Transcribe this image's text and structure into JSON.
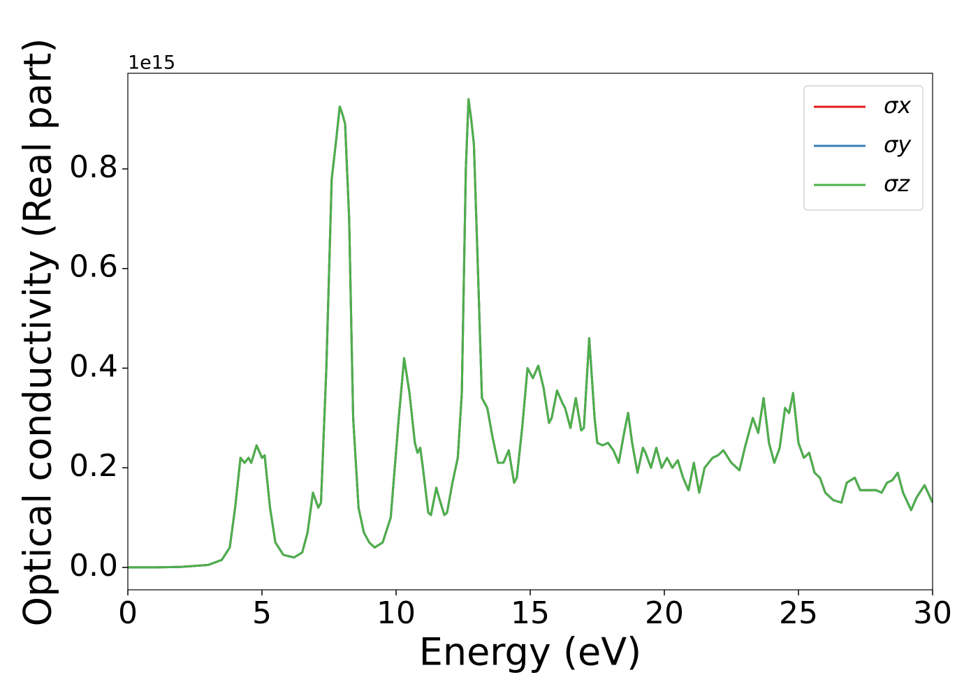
{
  "chart_data": {
    "type": "line",
    "xlabel": "Energy (eV)",
    "ylabel": "Optical conductivity (Real part)",
    "offset_label": "1e15",
    "xlim": [
      0,
      30
    ],
    "xticks": [
      0,
      5,
      10,
      15,
      20,
      25,
      30
    ],
    "ylim": [
      -0.045,
      0.992
    ],
    "yticks": [
      {
        "value": 0,
        "label": "0.0"
      },
      {
        "value": 0.2,
        "label": "0.2"
      },
      {
        "value": 0.4,
        "label": "0.4"
      },
      {
        "value": 0.6,
        "label": "0.6"
      },
      {
        "value": 0.8,
        "label": "0.8"
      }
    ],
    "legend": "upper right",
    "x": [
      0,
      1,
      2,
      3,
      3.5,
      3.8,
      4.0,
      4.2,
      4.35,
      4.5,
      4.6,
      4.8,
      5.0,
      5.1,
      5.3,
      5.5,
      5.8,
      6.2,
      6.5,
      6.7,
      6.9,
      7.1,
      7.2,
      7.4,
      7.6,
      7.75,
      7.9,
      8.0,
      8.1,
      8.25,
      8.4,
      8.6,
      8.8,
      9.0,
      9.2,
      9.5,
      9.8,
      10.1,
      10.3,
      10.5,
      10.7,
      10.8,
      10.9,
      11.0,
      11.2,
      11.3,
      11.5,
      11.6,
      11.8,
      11.9,
      12.1,
      12.3,
      12.45,
      12.6,
      12.7,
      12.8,
      12.9,
      13.05,
      13.2,
      13.4,
      13.6,
      13.8,
      14.0,
      14.2,
      14.4,
      14.5,
      14.7,
      14.9,
      15.1,
      15.3,
      15.5,
      15.7,
      15.8,
      16.0,
      16.2,
      16.3,
      16.5,
      16.7,
      16.9,
      17.0,
      17.2,
      17.4,
      17.5,
      17.7,
      17.9,
      18.1,
      18.3,
      18.5,
      18.65,
      18.8,
      19.0,
      19.2,
      19.3,
      19.5,
      19.7,
      19.9,
      20.1,
      20.3,
      20.5,
      20.7,
      20.9,
      21.1,
      21.3,
      21.5,
      21.8,
      22.0,
      22.2,
      22.5,
      22.8,
      23.0,
      23.3,
      23.5,
      23.7,
      23.9,
      24.1,
      24.3,
      24.5,
      24.65,
      24.8,
      25.0,
      25.2,
      25.4,
      25.6,
      25.8,
      26.0,
      26.3,
      26.6,
      26.8,
      27.1,
      27.3,
      27.6,
      27.9,
      28.1,
      28.3,
      28.5,
      28.7,
      28.9,
      29.2,
      29.4,
      29.7,
      30.0
    ],
    "series": [
      {
        "name": "σx",
        "color": "#e41a1c",
        "values": [
          0,
          0,
          0.001,
          0.005,
          0.015,
          0.04,
          0.12,
          0.22,
          0.21,
          0.22,
          0.21,
          0.245,
          0.22,
          0.225,
          0.12,
          0.05,
          0.025,
          0.02,
          0.03,
          0.07,
          0.15,
          0.12,
          0.13,
          0.4,
          0.78,
          0.85,
          0.925,
          0.91,
          0.89,
          0.7,
          0.3,
          0.12,
          0.07,
          0.05,
          0.04,
          0.05,
          0.1,
          0.3,
          0.42,
          0.35,
          0.25,
          0.23,
          0.24,
          0.2,
          0.11,
          0.105,
          0.16,
          0.14,
          0.105,
          0.11,
          0.17,
          0.22,
          0.35,
          0.8,
          0.94,
          0.9,
          0.85,
          0.6,
          0.34,
          0.32,
          0.26,
          0.21,
          0.21,
          0.235,
          0.17,
          0.18,
          0.28,
          0.4,
          0.38,
          0.405,
          0.36,
          0.29,
          0.3,
          0.355,
          0.33,
          0.32,
          0.28,
          0.34,
          0.275,
          0.28,
          0.46,
          0.3,
          0.25,
          0.245,
          0.25,
          0.235,
          0.21,
          0.27,
          0.31,
          0.25,
          0.19,
          0.24,
          0.23,
          0.2,
          0.24,
          0.2,
          0.22,
          0.2,
          0.215,
          0.18,
          0.155,
          0.21,
          0.15,
          0.2,
          0.22,
          0.225,
          0.235,
          0.21,
          0.195,
          0.24,
          0.3,
          0.27,
          0.34,
          0.25,
          0.21,
          0.24,
          0.32,
          0.31,
          0.35,
          0.25,
          0.22,
          0.23,
          0.19,
          0.18,
          0.15,
          0.135,
          0.13,
          0.17,
          0.18,
          0.155,
          0.155,
          0.155,
          0.15,
          0.17,
          0.175,
          0.19,
          0.15,
          0.115,
          0.14,
          0.165,
          0.13
        ]
      },
      {
        "name": "σy",
        "color": "#377eb8",
        "values": [
          0,
          0,
          0.001,
          0.005,
          0.015,
          0.04,
          0.12,
          0.22,
          0.21,
          0.22,
          0.21,
          0.245,
          0.22,
          0.225,
          0.12,
          0.05,
          0.025,
          0.02,
          0.03,
          0.07,
          0.15,
          0.12,
          0.13,
          0.4,
          0.78,
          0.85,
          0.925,
          0.91,
          0.89,
          0.7,
          0.3,
          0.12,
          0.07,
          0.05,
          0.04,
          0.05,
          0.1,
          0.3,
          0.42,
          0.35,
          0.25,
          0.23,
          0.24,
          0.2,
          0.11,
          0.105,
          0.16,
          0.14,
          0.105,
          0.11,
          0.17,
          0.22,
          0.35,
          0.8,
          0.94,
          0.9,
          0.85,
          0.6,
          0.34,
          0.32,
          0.26,
          0.21,
          0.21,
          0.235,
          0.17,
          0.18,
          0.28,
          0.4,
          0.38,
          0.405,
          0.36,
          0.29,
          0.3,
          0.355,
          0.33,
          0.32,
          0.28,
          0.34,
          0.275,
          0.28,
          0.46,
          0.3,
          0.25,
          0.245,
          0.25,
          0.235,
          0.21,
          0.27,
          0.31,
          0.25,
          0.19,
          0.24,
          0.23,
          0.2,
          0.24,
          0.2,
          0.22,
          0.2,
          0.215,
          0.18,
          0.155,
          0.21,
          0.15,
          0.2,
          0.22,
          0.225,
          0.235,
          0.21,
          0.195,
          0.24,
          0.3,
          0.27,
          0.34,
          0.25,
          0.21,
          0.24,
          0.32,
          0.31,
          0.35,
          0.25,
          0.22,
          0.23,
          0.19,
          0.18,
          0.15,
          0.135,
          0.13,
          0.17,
          0.18,
          0.155,
          0.155,
          0.155,
          0.15,
          0.17,
          0.175,
          0.19,
          0.15,
          0.115,
          0.14,
          0.165,
          0.13
        ]
      },
      {
        "name": "σz",
        "color": "#4daf4a",
        "values": [
          0,
          0,
          0.001,
          0.005,
          0.015,
          0.04,
          0.12,
          0.22,
          0.21,
          0.22,
          0.21,
          0.245,
          0.22,
          0.225,
          0.12,
          0.05,
          0.025,
          0.02,
          0.03,
          0.07,
          0.15,
          0.12,
          0.13,
          0.4,
          0.78,
          0.85,
          0.925,
          0.91,
          0.89,
          0.7,
          0.3,
          0.12,
          0.07,
          0.05,
          0.04,
          0.05,
          0.1,
          0.3,
          0.42,
          0.35,
          0.25,
          0.23,
          0.24,
          0.2,
          0.11,
          0.105,
          0.16,
          0.14,
          0.105,
          0.11,
          0.17,
          0.22,
          0.35,
          0.8,
          0.94,
          0.9,
          0.85,
          0.6,
          0.34,
          0.32,
          0.26,
          0.21,
          0.21,
          0.235,
          0.17,
          0.18,
          0.28,
          0.4,
          0.38,
          0.405,
          0.36,
          0.29,
          0.3,
          0.355,
          0.33,
          0.32,
          0.28,
          0.34,
          0.275,
          0.28,
          0.46,
          0.3,
          0.25,
          0.245,
          0.25,
          0.235,
          0.21,
          0.27,
          0.31,
          0.25,
          0.19,
          0.24,
          0.23,
          0.2,
          0.24,
          0.2,
          0.22,
          0.2,
          0.215,
          0.18,
          0.155,
          0.21,
          0.15,
          0.2,
          0.22,
          0.225,
          0.235,
          0.21,
          0.195,
          0.24,
          0.3,
          0.27,
          0.34,
          0.25,
          0.21,
          0.24,
          0.32,
          0.31,
          0.35,
          0.25,
          0.22,
          0.23,
          0.19,
          0.18,
          0.15,
          0.135,
          0.13,
          0.17,
          0.18,
          0.155,
          0.155,
          0.155,
          0.15,
          0.17,
          0.175,
          0.19,
          0.15,
          0.115,
          0.14,
          0.165,
          0.13
        ]
      }
    ]
  }
}
